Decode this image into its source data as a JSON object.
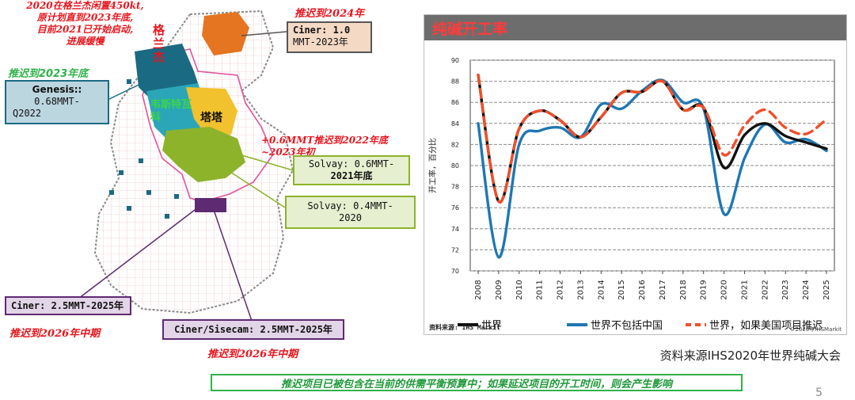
{
  "map": {
    "note_top": [
      "2020在格兰杰闲置450kt,",
      "原计划直到2023年底,",
      "目前2021已开始启动,",
      "进展缓慢"
    ],
    "note_2024": "推迟到2024年",
    "note_2023": "推迟到2023年底",
    "note_solvay": "+0.6MMT推迟到2022年底~2023年初",
    "note_2026_a": "推迟到2026年中期",
    "note_2026_b": "推迟到2026年中期",
    "label_granger": "格兰杰",
    "label_westvaco": "韦斯特瓦科",
    "label_tata": "塔塔",
    "callouts": {
      "ciner_top": {
        "line1": "Ciner: 1.0",
        "line2": "MMT-2023年"
      },
      "genesis": {
        "line1": "Genesis::",
        "line2": "0.68MMT-",
        "line3": "Q2022"
      },
      "solvay1": {
        "line1": "Solvay: 0.6MMT-",
        "line2": "2021年底"
      },
      "solvay2": {
        "line1": "Solvay: 0.4MMT-",
        "line2": "2020"
      },
      "ciner_bottom": "Ciner: 2.5MMT-2025年",
      "ciner_sisecam": "Ciner/Sisecam: 2.5MMT-2025年"
    }
  },
  "chart_panel": {
    "title": "纯碱开工率",
    "source_small": "资料来源: IHS Markit",
    "copyright": "©2020年IHSMarkit"
  },
  "footer": {
    "source": "资料来源IHS2020年世界纯碱大会",
    "banner": "推迟项目已被包含在当前的供需平衡预算中；如果延迟项目的开工时间，则会产生影响",
    "page_number": "5"
  },
  "colors": {
    "world": "#111111",
    "world_ex_china": "#1f77b4",
    "world_us_delay": "#f0502a",
    "title_bar": "#6d6d6d",
    "banner_border": "#2fb24a"
  },
  "chart_data": {
    "type": "line",
    "title": "纯碱开工率",
    "ylabel": "开工率，百分比",
    "xlabel": "",
    "ylim": [
      70,
      90
    ],
    "yticks": [
      70,
      72,
      74,
      76,
      78,
      80,
      82,
      84,
      86,
      88,
      90
    ],
    "grid": true,
    "legend": "bottom",
    "x": [
      "2008",
      "2009",
      "2010",
      "2011",
      "2012",
      "2013",
      "2014",
      "2015",
      "2016",
      "2017",
      "2018",
      "2019",
      "2020",
      "2021",
      "2022",
      "2023",
      "2024",
      "2025"
    ],
    "series": [
      {
        "name": "世界",
        "color": "#111111",
        "dash": false,
        "values": [
          88.6,
          76.6,
          83.5,
          85.2,
          84.3,
          82.7,
          84.6,
          86.9,
          87.0,
          88.0,
          85.3,
          85.5,
          79.8,
          82.9,
          84.0,
          82.8,
          82.2,
          81.6
        ]
      },
      {
        "name": "世界不包括中国",
        "color": "#1f77b4",
        "dash": false,
        "values": [
          84.0,
          71.3,
          82.0,
          83.3,
          83.6,
          82.7,
          85.8,
          85.4,
          87.1,
          88.1,
          86.0,
          85.4,
          75.4,
          80.7,
          83.9,
          82.2,
          82.5,
          81.4
        ]
      },
      {
        "name": "世界，如果美国项目推迟",
        "color": "#f0502a",
        "dash": true,
        "values": [
          88.6,
          76.6,
          83.5,
          85.2,
          84.3,
          82.7,
          84.6,
          86.9,
          87.0,
          88.0,
          85.3,
          85.5,
          81.0,
          83.8,
          85.3,
          83.6,
          83.0,
          84.4
        ]
      }
    ]
  }
}
